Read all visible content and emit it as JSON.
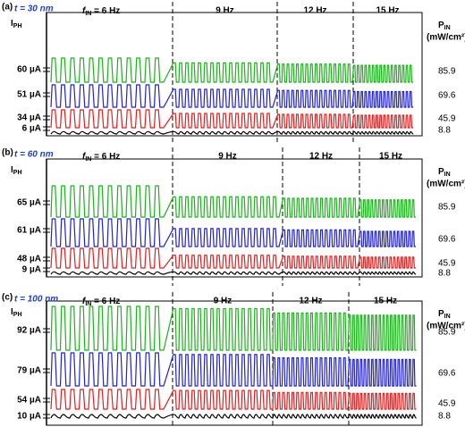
{
  "panels": [
    {
      "label": "(a)",
      "thickness": "t = 30 nm",
      "freq_symbol": "f",
      "freq_sub": "IN",
      "freq_first": " = 6 Hz",
      "freqs": [
        "9 Hz",
        "12 Hz",
        "15 Hz"
      ],
      "current_symbol": "I",
      "current_sub": "PH",
      "currents": [
        "60 µA",
        "51 µA",
        "34 µA",
        "6 µA"
      ],
      "power_symbol": "P",
      "power_sub": "IN",
      "power_unit": "(mW/cm²)",
      "powers": [
        "85.9",
        "69.6",
        "45.9",
        "8.8"
      ]
    },
    {
      "label": "(b)",
      "thickness": "t = 60 nm",
      "freq_symbol": "f",
      "freq_sub": "IN",
      "freq_first": " = 6 Hz",
      "freqs": [
        "9 Hz",
        "12 Hz",
        "15 Hz"
      ],
      "current_symbol": "I",
      "current_sub": "PH",
      "currents": [
        "65 µA",
        "61 µA",
        "48 µA",
        "9 µA"
      ],
      "power_symbol": "P",
      "power_sub": "IN",
      "power_unit": "(mW/cm²)",
      "powers": [
        "85.9",
        "69.6",
        "45.9",
        "8.8"
      ]
    },
    {
      "label": "(c)",
      "thickness": "t = 100 nm",
      "freq_symbol": "f",
      "freq_sub": "IN",
      "freq_first": " = 6 Hz",
      "freqs": [
        "9 Hz",
        "12 Hz",
        "15 Hz"
      ],
      "current_symbol": "I",
      "current_sub": "PH",
      "currents": [
        "92 µA",
        "79 µA",
        "54 µA",
        "10 µA"
      ],
      "power_symbol": "P",
      "power_sub": "IN",
      "power_unit": "(mW/cm²)",
      "powers": [
        "85.9",
        "69.6",
        "45.9",
        "8.8"
      ]
    }
  ]
}
